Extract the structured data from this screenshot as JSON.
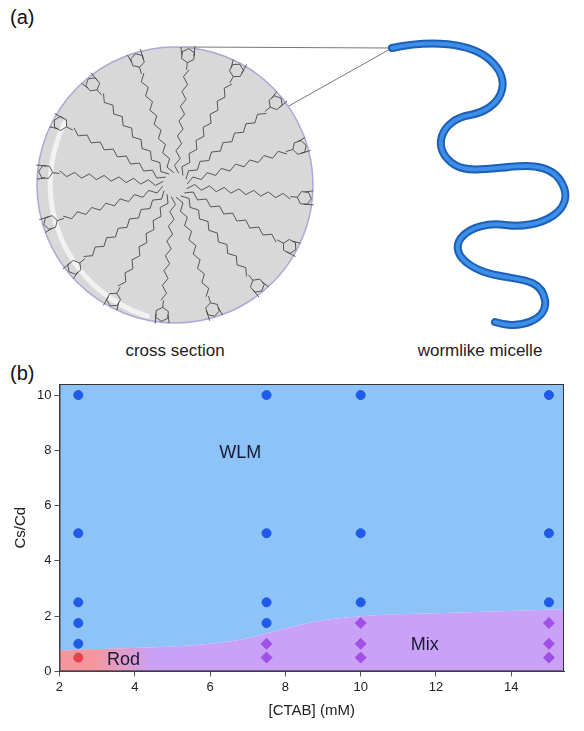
{
  "panel_a": {
    "label": "(a)",
    "captions": [
      "cross section",
      "wormlike micelle"
    ]
  },
  "chart_data": {
    "type": "scatter",
    "label": "(b)",
    "x_label": "[CTAB] (mM)",
    "y_label": "Cs/Cd",
    "xlim": [
      2,
      15.4
    ],
    "xticks": [
      2,
      4,
      6,
      8,
      10,
      12,
      14
    ],
    "ylim": [
      0,
      10.4
    ],
    "yticks": [
      0,
      2,
      4,
      6,
      8,
      10
    ],
    "grid": false,
    "series": [
      {
        "name": "WLM",
        "color": "#1f5ae8",
        "marker": "circle",
        "x": [
          2.5,
          2.5,
          2.5,
          2.5,
          2.5,
          7.5,
          7.5,
          7.5,
          7.5,
          10,
          10,
          10,
          15,
          15,
          15
        ],
        "values": [
          10,
          5,
          2.5,
          1.75,
          1.0,
          10,
          5,
          2.5,
          1.75,
          10,
          5,
          2.5,
          10,
          5,
          2.5
        ]
      },
      {
        "name": "Mix",
        "color": "#a050e6",
        "marker": "diamond",
        "x": [
          7.5,
          7.5,
          10,
          10,
          10,
          15,
          15,
          15
        ],
        "values": [
          1.0,
          0.5,
          1.75,
          1.0,
          0.5,
          1.75,
          1.0,
          0.5
        ]
      },
      {
        "name": "Rod",
        "color": "#e8404a",
        "marker": "circle",
        "x": [
          2.5
        ],
        "values": [
          0.5
        ]
      }
    ],
    "boundary": {
      "x": [
        2,
        3,
        4.5,
        6,
        7,
        8,
        9,
        10,
        12,
        15.4
      ],
      "values": [
        0.75,
        0.8,
        0.87,
        1.0,
        1.2,
        1.55,
        1.85,
        2.0,
        2.1,
        2.25
      ]
    },
    "regions": [
      {
        "name": "WLM",
        "color": "#8dc3f7",
        "side": "above",
        "label_x": 6.8,
        "label_y": 7.9
      },
      {
        "name": "Mix",
        "color": "#c9a2f7",
        "side": "below",
        "label_x": 11.7,
        "label_y": 0.95
      },
      {
        "name": "Rod",
        "color": "#f5969c",
        "side": "below",
        "xlim": [
          2,
          4.5
        ],
        "label_x": 3.7,
        "label_y": 0.4
      }
    ]
  }
}
